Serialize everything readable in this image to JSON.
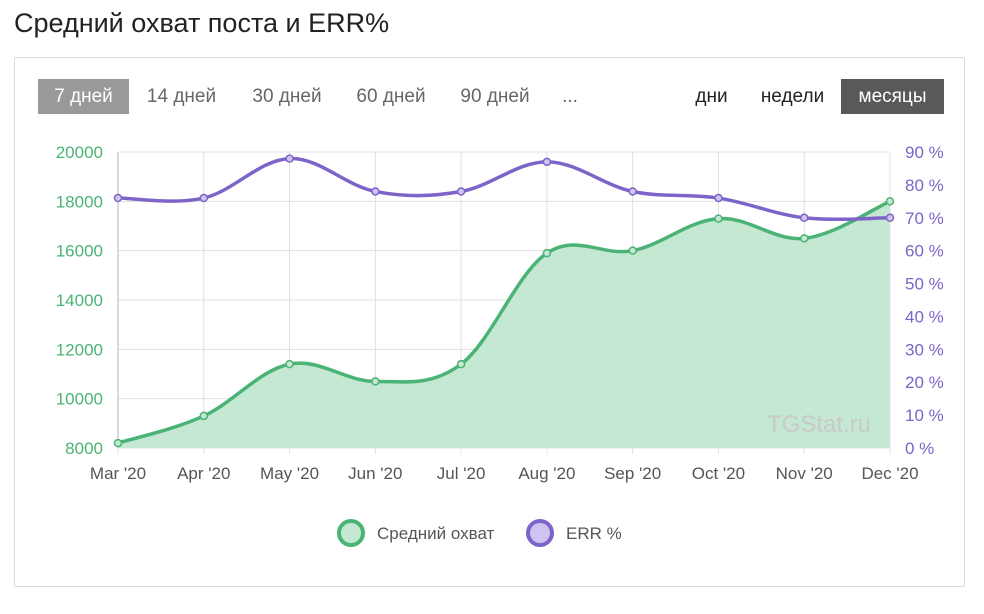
{
  "header": {
    "title": "Средний охват поста и ERR%"
  },
  "periods": {
    "items": [
      "7 дней",
      "14 дней",
      "30 дней",
      "60 дней",
      "90 дней",
      "..."
    ],
    "active_index": 0
  },
  "granularity": {
    "items": [
      "дни",
      "недели",
      "месяцы"
    ],
    "active_index": 2
  },
  "watermark": "TGStat.ru",
  "colors": {
    "reach": "#4ab375",
    "reach_fill": "#c4e8d1",
    "err": "#7d64c8",
    "err_point_fill": "#cfc3f0",
    "grid": "#e0e0e0"
  },
  "chart_data": {
    "type": "line",
    "categories": [
      "Mar '20",
      "Apr '20",
      "May '20",
      "Jun '20",
      "Jul '20",
      "Aug '20",
      "Sep '20",
      "Oct '20",
      "Nov '20",
      "Dec '20"
    ],
    "series": [
      {
        "name": "Средний охват",
        "axis": "left",
        "fill": true,
        "values": [
          8200,
          9300,
          11400,
          10700,
          11400,
          15900,
          16000,
          17300,
          16500,
          18000
        ]
      },
      {
        "name": "ERR %",
        "axis": "right",
        "fill": false,
        "values": [
          76,
          76,
          88,
          78,
          78,
          87,
          78,
          76,
          70,
          70
        ]
      }
    ],
    "y_left": {
      "min": 8000,
      "max": 20000,
      "ticks": [
        "20000",
        "18000",
        "16000",
        "14000",
        "12000",
        "10000",
        "8000"
      ],
      "tick_values": [
        20000,
        18000,
        16000,
        14000,
        12000,
        10000,
        8000
      ]
    },
    "y_right": {
      "min": 0,
      "max": 90,
      "ticks": [
        "90 %",
        "80 %",
        "70 %",
        "60 %",
        "50 %",
        "40 %",
        "30 %",
        "20 %",
        "10 %",
        "0 %"
      ],
      "tick_values": [
        90,
        80,
        70,
        60,
        50,
        40,
        30,
        20,
        10,
        0
      ]
    },
    "grid": true,
    "legend_position": "bottom"
  }
}
